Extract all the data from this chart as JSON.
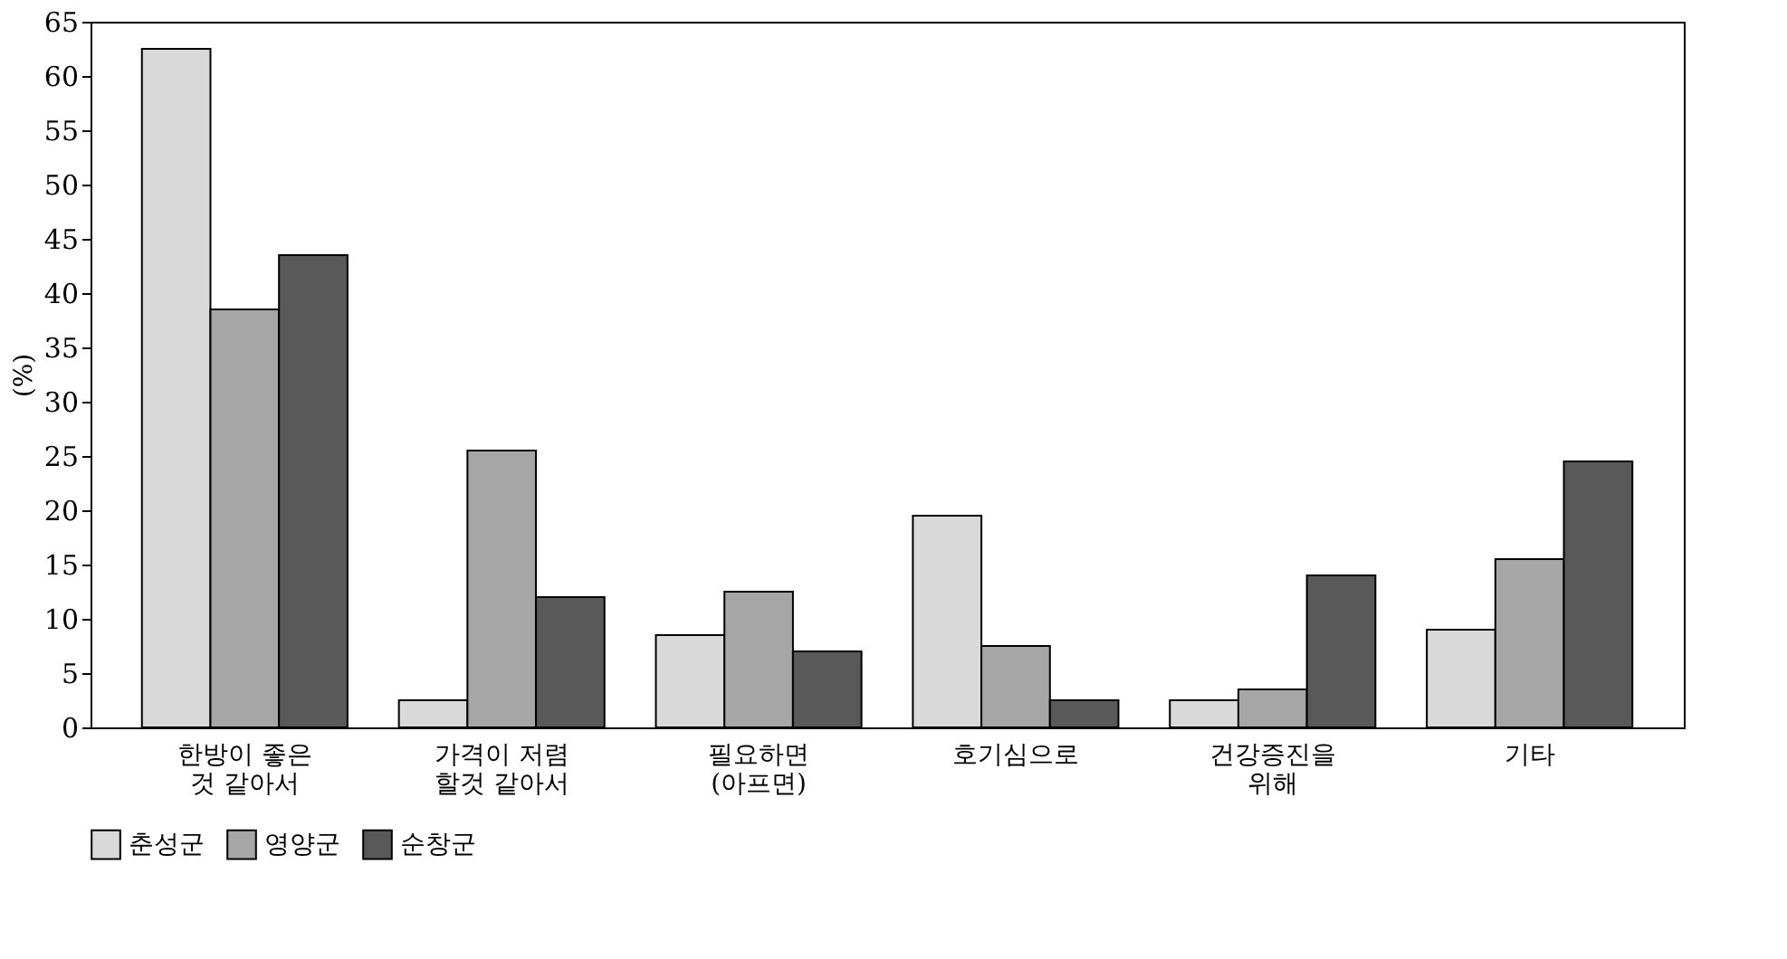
{
  "chart_data": {
    "type": "bar",
    "ylabel": "(%)",
    "categories": [
      "한방이 좋은\n것 같아서",
      "가격이 저렴\n할것 같아서",
      "필요하면\n(아프면)",
      "호기심으로",
      "건강증진을\n위해",
      "기타"
    ],
    "series": [
      {
        "name": "춘성군",
        "color": "#d9d9d9",
        "values": [
          62.5,
          2.5,
          8.5,
          19.5,
          2.5,
          9
        ]
      },
      {
        "name": "영양군",
        "color": "#a6a6a6",
        "values": [
          38.5,
          25.5,
          12.5,
          7.5,
          3.5,
          15.5
        ]
      },
      {
        "name": "순창군",
        "color": "#595959",
        "values": [
          43.5,
          12,
          7,
          2.5,
          14,
          24.5
        ]
      }
    ],
    "ylim": [
      0,
      65
    ],
    "yticks": [
      0,
      5,
      10,
      15,
      20,
      25,
      30,
      35,
      40,
      45,
      50,
      55,
      60,
      65
    ],
    "grid": false,
    "legend": "bottom"
  }
}
